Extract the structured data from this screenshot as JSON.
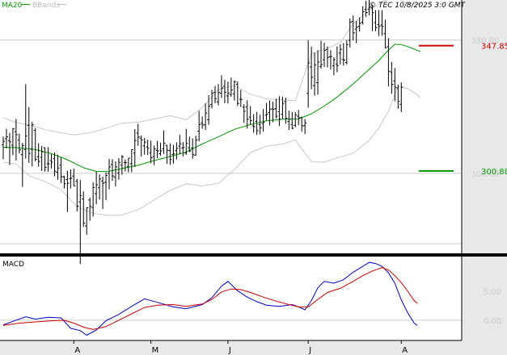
{
  "header": {
    "ma_label": "MA20",
    "bbands_label": "BBands",
    "copyright": "© TEC 10/8/2025 3:0 GMT"
  },
  "price_panel": {
    "y_ticks": [
      {
        "value": 350,
        "label": "350.00"
      },
      {
        "value": 300,
        "label": "300.00"
      }
    ],
    "markers": [
      {
        "value": 347.85,
        "label": "347.85",
        "color": "#cc0000"
      },
      {
        "value": 300.88,
        "label": "300.88",
        "color": "#009900"
      }
    ]
  },
  "macd_panel": {
    "label": "MACD",
    "y_ticks": [
      {
        "value": 5,
        "label": "5.00"
      },
      {
        "value": 0,
        "label": "0.00"
      }
    ]
  },
  "x_ticks": [
    {
      "label": "A",
      "index": 22
    },
    {
      "label": "M",
      "index": 46
    },
    {
      "label": "J",
      "index": 70
    },
    {
      "label": "J",
      "index": 95
    },
    {
      "label": "A",
      "index": 124
    }
  ],
  "colors": {
    "bars": "#000000",
    "ma20": "#009900",
    "bbands": "#c8c8c8",
    "macd_line": "#0000cc",
    "signal_line": "#cc0000",
    "grid": "#cccccc",
    "axis_bg": "#e8e8e8",
    "axis_line": "#000000"
  },
  "chart_data": {
    "type": "ohlc",
    "ylim": [
      270,
      365
    ],
    "macd_ylim": [
      -3.5,
      11
    ],
    "bars": [
      [
        310.7,
        313.8,
        305.3,
        312.0
      ],
      [
        313.0,
        316.7,
        309.3,
        313.7
      ],
      [
        312.3,
        315.2,
        303.1,
        311.8
      ],
      [
        310.5,
        317.0,
        306.8,
        316.7
      ],
      [
        315.6,
        320.4,
        304.8,
        314.5
      ],
      [
        312.5,
        314.9,
        307.5,
        308.8
      ],
      [
        307.0,
        311.4,
        294.9,
        310.4
      ],
      [
        308.9,
        333.4,
        305.5,
        314.0
      ],
      [
        318.0,
        324.8,
        303.9,
        307.5
      ],
      [
        309.1,
        319.3,
        302.6,
        318.2
      ],
      [
        316.1,
        317.0,
        304.5,
        305.3
      ],
      [
        306.2,
        311.3,
        302.5,
        304.5
      ],
      [
        306.0,
        310.3,
        300.9,
        308.1
      ],
      [
        309.6,
        309.7,
        300.6,
        302.2
      ],
      [
        303.6,
        309.8,
        300.6,
        303.6
      ],
      [
        304.8,
        307.2,
        301.8,
        304.2
      ],
      [
        305.5,
        307.8,
        298.9,
        300.8
      ],
      [
        300.4,
        307.0,
        297.6,
        302.0
      ],
      [
        303.1,
        305.9,
        296.3,
        298.7
      ],
      [
        298.7,
        299.1,
        294.3,
        296.1
      ],
      [
        297.7,
        301.0,
        285.5,
        296.3
      ],
      [
        298.0,
        301.5,
        294.3,
        298.2
      ],
      [
        299.0,
        301.8,
        295.3,
        295.3
      ],
      [
        297.0,
        297.9,
        285.7,
        287.7
      ],
      [
        289.3,
        297.5,
        266.0,
        291.7
      ],
      [
        290.4,
        293.2,
        279.9,
        281.3
      ],
      [
        280.3,
        287.1,
        277.0,
        287.1
      ],
      [
        290.0,
        290.9,
        282.2,
        287.6
      ],
      [
        287.2,
        296.7,
        283.8,
        294.7
      ],
      [
        292.4,
        300.6,
        288.4,
        295.7
      ],
      [
        294.6,
        299.6,
        290.2,
        297.9
      ],
      [
        297.1,
        298.8,
        286.6,
        296.3
      ],
      [
        296.6,
        300.4,
        289.9,
        299.2
      ],
      [
        300.0,
        305.4,
        294.0,
        302.4
      ],
      [
        303.3,
        305.3,
        297.2,
        299.0
      ],
      [
        298.6,
        304.5,
        295.1,
        302.4
      ],
      [
        300.1,
        305.7,
        297.6,
        304.1
      ],
      [
        303.1,
        306.9,
        299.5,
        306.2
      ],
      [
        304.1,
        305.2,
        300.7,
        304.0
      ],
      [
        302.6,
        305.7,
        300.4,
        305.7
      ],
      [
        303.6,
        309.0,
        300.4,
        308.9
      ],
      [
        307.6,
        316.6,
        302.4,
        312.3
      ],
      [
        315.1,
        318.6,
        310.3,
        313.6
      ],
      [
        313.2,
        314.2,
        306.3,
        312.5
      ],
      [
        310.3,
        313.2,
        307.0,
        311.7
      ],
      [
        309.9,
        312.6,
        306.9,
        309.4
      ],
      [
        307.8,
        312.3,
        303.8,
        305.8
      ],
      [
        306.3,
        310.4,
        303.1,
        309.2
      ],
      [
        308.6,
        312.2,
        305.7,
        308.4
      ],
      [
        307.4,
        311.5,
        306.6,
        308.4
      ],
      [
        309.2,
        316.1,
        307.3,
        311.3
      ],
      [
        310.5,
        310.6,
        303.6,
        308.7
      ],
      [
        308.5,
        311.2,
        303.2,
        305.2
      ],
      [
        307.1,
        310.7,
        303.6,
        307.3
      ],
      [
        308.5,
        311.6,
        305.2,
        309.4
      ],
      [
        310.2,
        314.4,
        307.2,
        311.1
      ],
      [
        309.5,
        311.8,
        306.3,
        309.7
      ],
      [
        307.6,
        316.7,
        306.9,
        311.2
      ],
      [
        309.6,
        313.8,
        307.9,
        308.4
      ],
      [
        309.5,
        313.1,
        305.5,
        307.0
      ],
      [
        306.8,
        314.1,
        306.7,
        312.5
      ],
      [
        315.8,
        323.4,
        312.0,
        318.3
      ],
      [
        318.8,
        321.3,
        316.7,
        318.1
      ],
      [
        318.2,
        326.2,
        316.3,
        322.6
      ],
      [
        320.1,
        329.3,
        318.2,
        325.2
      ],
      [
        325.8,
        331.3,
        324.3,
        330.0
      ],
      [
        330.4,
        332.8,
        326.3,
        328.0
      ],
      [
        326.8,
        333.5,
        325.5,
        330.3
      ],
      [
        330.0,
        336.8,
        328.3,
        332.0
      ],
      [
        332.6,
        335.1,
        326.3,
        330.4
      ],
      [
        329.0,
        334.4,
        326.2,
        330.1
      ],
      [
        329.5,
        335.9,
        328.7,
        331.3
      ],
      [
        329.8,
        334.9,
        327.3,
        334.3
      ],
      [
        333.4,
        334.4,
        325.3,
        326.2
      ],
      [
        327.8,
        331.3,
        324.9,
        327.7
      ],
      [
        324.8,
        325.9,
        318.9,
        323.3
      ],
      [
        324.9,
        327.4,
        316.8,
        320.3
      ],
      [
        321.1,
        325.2,
        318.2,
        319.8
      ],
      [
        317.8,
        322.2,
        315.2,
        317.5
      ],
      [
        319.5,
        323.0,
        314.4,
        316.0
      ],
      [
        318.3,
        322.0,
        314.6,
        317.0
      ],
      [
        318.7,
        324.1,
        315.6,
        319.2
      ],
      [
        321.8,
        326.4,
        319.8,
        322.2
      ],
      [
        322.8,
        327.3,
        318.0,
        324.0
      ],
      [
        324.2,
        326.9,
        319.2,
        324.0
      ],
      [
        324.3,
        328.0,
        320.6,
        321.4
      ],
      [
        323.1,
        328.9,
        317.7,
        320.3
      ],
      [
        322.2,
        328.8,
        320.4,
        326.2
      ],
      [
        326.9,
        328.4,
        318.6,
        320.7
      ],
      [
        319.4,
        323.5,
        316.3,
        320.3
      ],
      [
        318.3,
        323.0,
        316.5,
        316.9
      ],
      [
        318.0,
        323.0,
        317.3,
        321.9
      ],
      [
        321.4,
        323.8,
        318.0,
        320.8
      ],
      [
        320.9,
        321.3,
        315.6,
        317.8
      ],
      [
        317.9,
        320.4,
        314.7,
        318.9
      ],
      [
        330.0,
        349.9,
        324.6,
        341.4
      ],
      [
        339.9,
        347.5,
        331.5,
        336.0
      ],
      [
        332.9,
        345.3,
        329.1,
        340.7
      ],
      [
        334.0,
        346.2,
        329.5,
        341.7
      ],
      [
        340.1,
        349.7,
        339.3,
        340.8
      ],
      [
        342.6,
        349.0,
        339.9,
        346.1
      ],
      [
        346.4,
        347.6,
        339.7,
        343.5
      ],
      [
        343.7,
        346.2,
        338.9,
        343.8
      ],
      [
        340.3,
        343.5,
        336.8,
        342.6
      ],
      [
        341.0,
        347.6,
        337.9,
        340.4
      ],
      [
        345.1,
        348.4,
        340.8,
        346.5
      ],
      [
        342.7,
        348.9,
        340.4,
        342.5
      ],
      [
        341.5,
        349.9,
        340.9,
        348.3
      ],
      [
        349.9,
        358.1,
        347.2,
        356.7
      ],
      [
        357.0,
        359.2,
        349.8,
        352.7
      ],
      [
        354.1,
        357.2,
        348.8,
        354.8
      ],
      [
        355.1,
        358.5,
        353.2,
        356.2
      ],
      [
        356.7,
        362.7,
        355.8,
        360.6
      ],
      [
        361.5,
        364.7,
        358.7,
        360.3
      ],
      [
        361.6,
        365.2,
        359.3,
        362.3
      ],
      [
        362.0,
        363.2,
        353.3,
        360.2
      ],
      [
        356.5,
        361.2,
        353.3,
        354.7
      ],
      [
        355.8,
        361.2,
        351.5,
        355.1
      ],
      [
        355.6,
        361.2,
        351.6,
        355.1
      ],
      [
        352.4,
        357.6,
        346.9,
        347.1
      ],
      [
        347.5,
        350.7,
        332.6,
        338.3
      ],
      [
        338.0,
        341.8,
        329.8,
        333.4
      ],
      [
        334.7,
        339.5,
        327.0,
        332.3
      ],
      [
        332.0,
        333.3,
        324.2,
        327.0
      ],
      [
        325.9,
        334.1,
        323.0,
        332.3
      ]
    ],
    "ma20": [
      [
        0,
        309.8
      ],
      [
        5,
        309.6
      ],
      [
        10,
        308.9
      ],
      [
        15,
        307.4
      ],
      [
        20,
        305.1
      ],
      [
        25,
        302.1
      ],
      [
        29,
        300.7
      ],
      [
        33,
        300.8
      ],
      [
        37,
        301.8
      ],
      [
        42,
        303.0
      ],
      [
        47,
        304.8
      ],
      [
        52,
        306.3
      ],
      [
        57,
        308.0
      ],
      [
        62,
        311.0
      ],
      [
        67,
        313.7
      ],
      [
        72,
        316.5
      ],
      [
        77,
        318.3
      ],
      [
        82,
        319.7
      ],
      [
        87,
        320.3
      ],
      [
        92,
        320.4
      ],
      [
        96,
        322.3
      ],
      [
        100,
        325.2
      ],
      [
        104,
        328.6
      ],
      [
        109,
        333.5
      ],
      [
        114,
        339.0
      ],
      [
        117,
        342.3
      ],
      [
        120,
        346.2
      ],
      [
        122,
        348.4
      ],
      [
        124,
        348.3
      ],
      [
        126,
        347.5
      ],
      [
        128,
        346.6
      ],
      [
        130,
        345.6
      ]
    ],
    "bband_upper": [
      [
        0,
        320.9
      ],
      [
        4,
        319.0
      ],
      [
        8,
        318.2
      ],
      [
        13,
        316.4
      ],
      [
        17,
        315.4
      ],
      [
        22,
        314.4
      ],
      [
        28,
        315.4
      ],
      [
        33,
        317.3
      ],
      [
        37,
        318.8
      ],
      [
        42,
        319.2
      ],
      [
        47,
        320.4
      ],
      [
        52,
        321.6
      ],
      [
        57,
        320.1
      ],
      [
        62,
        324.6
      ],
      [
        67,
        331.3
      ],
      [
        72,
        332.9
      ],
      [
        77,
        329.7
      ],
      [
        82,
        327.9
      ],
      [
        87,
        327.6
      ],
      [
        91,
        327.2
      ],
      [
        96,
        344.8
      ],
      [
        101,
        346.9
      ],
      [
        105,
        349.1
      ],
      [
        109,
        356.1
      ],
      [
        114,
        361.0
      ],
      [
        118,
        364.4
      ],
      [
        122,
        366.1
      ],
      [
        125,
        364.2
      ],
      [
        128,
        363.4
      ],
      [
        130,
        363.4
      ]
    ],
    "bband_lower": [
      [
        0,
        304.2
      ],
      [
        4,
        303.5
      ],
      [
        8,
        299.1
      ],
      [
        13,
        297.0
      ],
      [
        18,
        293.8
      ],
      [
        23,
        287.5
      ],
      [
        28,
        285.0
      ],
      [
        33,
        284.2
      ],
      [
        37,
        284.4
      ],
      [
        42,
        286.3
      ],
      [
        47,
        290.0
      ],
      [
        52,
        293.6
      ],
      [
        57,
        296.1
      ],
      [
        62,
        295.3
      ],
      [
        67,
        296.2
      ],
      [
        72,
        301.4
      ],
      [
        77,
        307.8
      ],
      [
        82,
        310.2
      ],
      [
        87,
        311.0
      ],
      [
        91,
        312.5
      ],
      [
        96,
        304.3
      ],
      [
        100,
        304.2
      ],
      [
        104,
        305.8
      ],
      [
        109,
        307.5
      ],
      [
        114,
        312.4
      ],
      [
        117,
        317.0
      ],
      [
        120,
        323.4
      ],
      [
        123,
        332.6
      ],
      [
        126,
        331.8
      ],
      [
        129,
        329.5
      ],
      [
        130,
        328.2
      ]
    ],
    "macd": [
      [
        0,
        -0.8
      ],
      [
        3,
        -0.2
      ],
      [
        7,
        0.6
      ],
      [
        10,
        0.2
      ],
      [
        14,
        0.5
      ],
      [
        18,
        0.4
      ],
      [
        21,
        -1.4
      ],
      [
        24,
        -1.8
      ],
      [
        26,
        -2.6
      ],
      [
        29,
        -1.7
      ],
      [
        32,
        -0.1
      ],
      [
        36,
        1.0
      ],
      [
        40,
        2.4
      ],
      [
        44,
        3.7
      ],
      [
        48,
        3.1
      ],
      [
        53,
        2.3
      ],
      [
        57,
        2.0
      ],
      [
        62,
        2.7
      ],
      [
        65,
        3.9
      ],
      [
        68,
        5.9
      ],
      [
        70,
        6.7
      ],
      [
        73,
        5.1
      ],
      [
        76,
        4.0
      ],
      [
        79,
        3.2
      ],
      [
        82,
        2.6
      ],
      [
        86,
        2.4
      ],
      [
        90,
        2.7
      ],
      [
        92,
        2.3
      ],
      [
        94,
        1.8
      ],
      [
        96,
        3.4
      ],
      [
        98,
        5.6
      ],
      [
        100,
        6.7
      ],
      [
        103,
        6.4
      ],
      [
        106,
        7.0
      ],
      [
        109,
        8.3
      ],
      [
        112,
        9.3
      ],
      [
        114,
        10.0
      ],
      [
        116,
        9.8
      ],
      [
        118,
        9.3
      ],
      [
        120,
        8.2
      ],
      [
        122,
        6.4
      ],
      [
        124,
        3.5
      ],
      [
        126,
        1.3
      ],
      [
        128,
        -0.5
      ],
      [
        129,
        -0.9
      ]
    ],
    "signal": [
      [
        0,
        -0.9
      ],
      [
        5,
        -0.5
      ],
      [
        10,
        -0.3
      ],
      [
        15,
        -0.1
      ],
      [
        19,
        0.0
      ],
      [
        22,
        -0.5
      ],
      [
        25,
        -1.2
      ],
      [
        28,
        -1.6
      ],
      [
        32,
        -1.1
      ],
      [
        36,
        0.0
      ],
      [
        40,
        1.1
      ],
      [
        44,
        2.2
      ],
      [
        48,
        2.6
      ],
      [
        53,
        2.7
      ],
      [
        57,
        2.4
      ],
      [
        62,
        2.8
      ],
      [
        65,
        3.6
      ],
      [
        68,
        4.9
      ],
      [
        71,
        5.4
      ],
      [
        74,
        5.3
      ],
      [
        77,
        4.8
      ],
      [
        81,
        4.0
      ],
      [
        85,
        3.3
      ],
      [
        89,
        2.7
      ],
      [
        92,
        2.3
      ],
      [
        95,
        2.3
      ],
      [
        98,
        3.6
      ],
      [
        101,
        4.8
      ],
      [
        105,
        5.5
      ],
      [
        109,
        6.7
      ],
      [
        112,
        7.7
      ],
      [
        115,
        8.5
      ],
      [
        118,
        9.1
      ],
      [
        120,
        8.7
      ],
      [
        122,
        7.7
      ],
      [
        124,
        6.5
      ],
      [
        126,
        5.0
      ],
      [
        128,
        3.4
      ],
      [
        129,
        2.9
      ]
    ]
  }
}
